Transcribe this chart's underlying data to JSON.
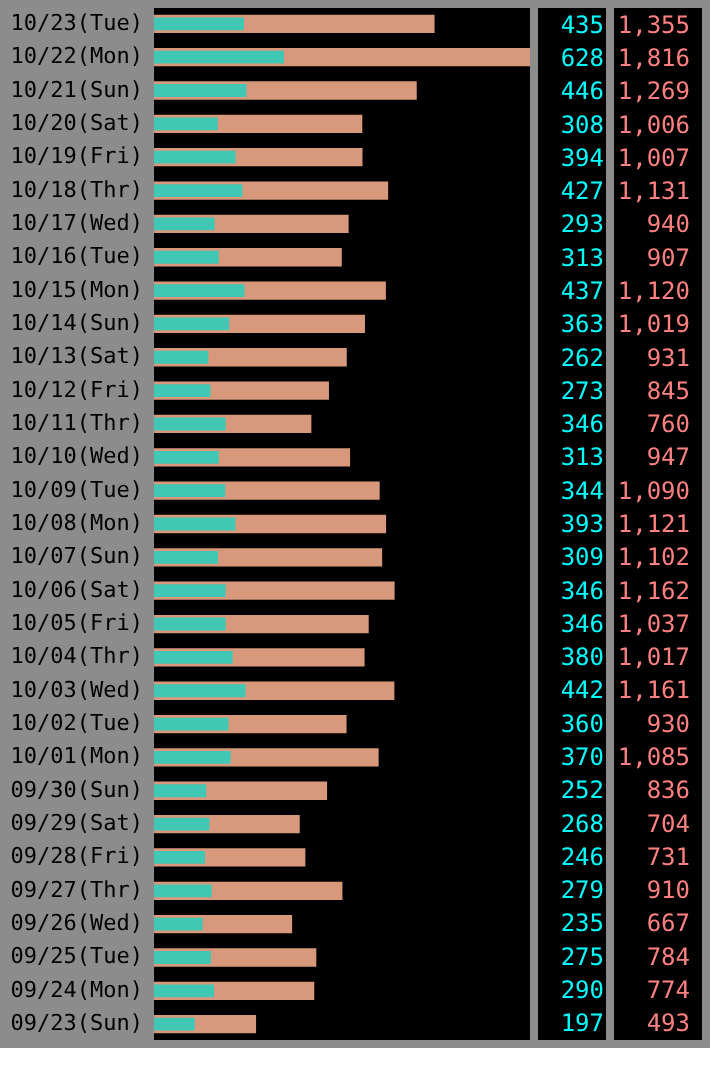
{
  "chart_data": {
    "type": "bar",
    "orientation": "horizontal",
    "stacked": false,
    "tick_labels": "y",
    "legend": false,
    "grid": false,
    "categories": [
      "10/23(Tue)",
      "10/22(Mon)",
      "10/21(Sun)",
      "10/20(Sat)",
      "10/19(Fri)",
      "10/18(Thr)",
      "10/17(Wed)",
      "10/16(Tue)",
      "10/15(Mon)",
      "10/14(Sun)",
      "10/13(Sat)",
      "10/12(Fri)",
      "10/11(Thr)",
      "10/10(Wed)",
      "10/09(Tue)",
      "10/08(Mon)",
      "10/07(Sun)",
      "10/06(Sat)",
      "10/05(Fri)",
      "10/04(Thr)",
      "10/03(Wed)",
      "10/02(Tue)",
      "10/01(Mon)",
      "09/30(Sun)",
      "09/29(Sat)",
      "09/28(Fri)",
      "09/27(Thr)",
      "09/26(Wed)",
      "09/25(Tue)",
      "09/24(Mon)",
      "09/23(Sun)"
    ],
    "series": [
      {
        "color": "#d8987c",
        "values": [
          1355,
          1816,
          1269,
          1006,
          1007,
          1131,
          940,
          907,
          1120,
          1019,
          931,
          845,
          760,
          947,
          1090,
          1121,
          1102,
          1162,
          1037,
          1017,
          1161,
          930,
          1085,
          836,
          704,
          731,
          910,
          667,
          784,
          774,
          493
        ],
        "value_labels": [
          "1,355",
          "1,816",
          "1,269",
          "1,006",
          "1,007",
          "1,131",
          "940",
          "907",
          "1,120",
          "1,019",
          "931",
          "845",
          "760",
          "947",
          "1,090",
          "1,121",
          "1,102",
          "1,162",
          "1,037",
          "1,017",
          "1,161",
          "930",
          "1,085",
          "836",
          "704",
          "731",
          "910",
          "667",
          "784",
          "774",
          "493"
        ]
      },
      {
        "color": "#40c8b4",
        "values": [
          435,
          628,
          446,
          308,
          394,
          427,
          293,
          313,
          437,
          363,
          262,
          273,
          346,
          313,
          344,
          393,
          309,
          346,
          346,
          380,
          442,
          360,
          370,
          252,
          268,
          246,
          279,
          235,
          275,
          290,
          197
        ],
        "value_labels": [
          "435",
          "628",
          "446",
          "308",
          "394",
          "427",
          "293",
          "313",
          "437",
          "363",
          "262",
          "273",
          "346",
          "313",
          "344",
          "393",
          "309",
          "346",
          "346",
          "380",
          "442",
          "360",
          "370",
          "252",
          "268",
          "246",
          "279",
          "235",
          "275",
          "290",
          "197"
        ]
      }
    ]
  }
}
